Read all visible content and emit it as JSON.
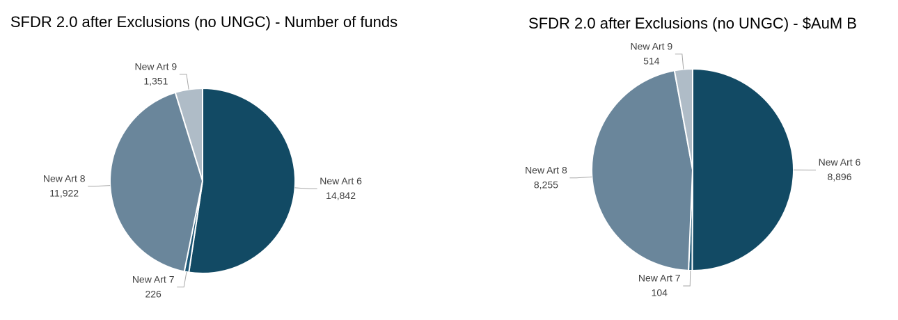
{
  "chart_data": [
    {
      "type": "pie",
      "title": "SFDR 2.0 after Exclusions (no UNGC) - Number of funds",
      "categories": [
        "New Art 6",
        "New Art 7",
        "New Art 8",
        "New Art 9"
      ],
      "values": [
        14842,
        226,
        11922,
        1351
      ],
      "value_labels": [
        "14,842",
        "226",
        "11,922",
        "1,351"
      ],
      "colors": [
        "#124a64",
        "#1b5675",
        "#6a869b",
        "#afbcc7"
      ]
    },
    {
      "type": "pie",
      "title": "SFDR 2.0 after Exclusions (no UNGC) - $AuM B",
      "categories": [
        "New Art 6",
        "New Art 7",
        "New Art 8",
        "New Art 9"
      ],
      "values": [
        8896,
        104,
        8255,
        514
      ],
      "value_labels": [
        "8,896",
        "104",
        "8,255",
        "514"
      ],
      "colors": [
        "#124a64",
        "#1b5675",
        "#6a869b",
        "#afbcc7"
      ]
    }
  ]
}
